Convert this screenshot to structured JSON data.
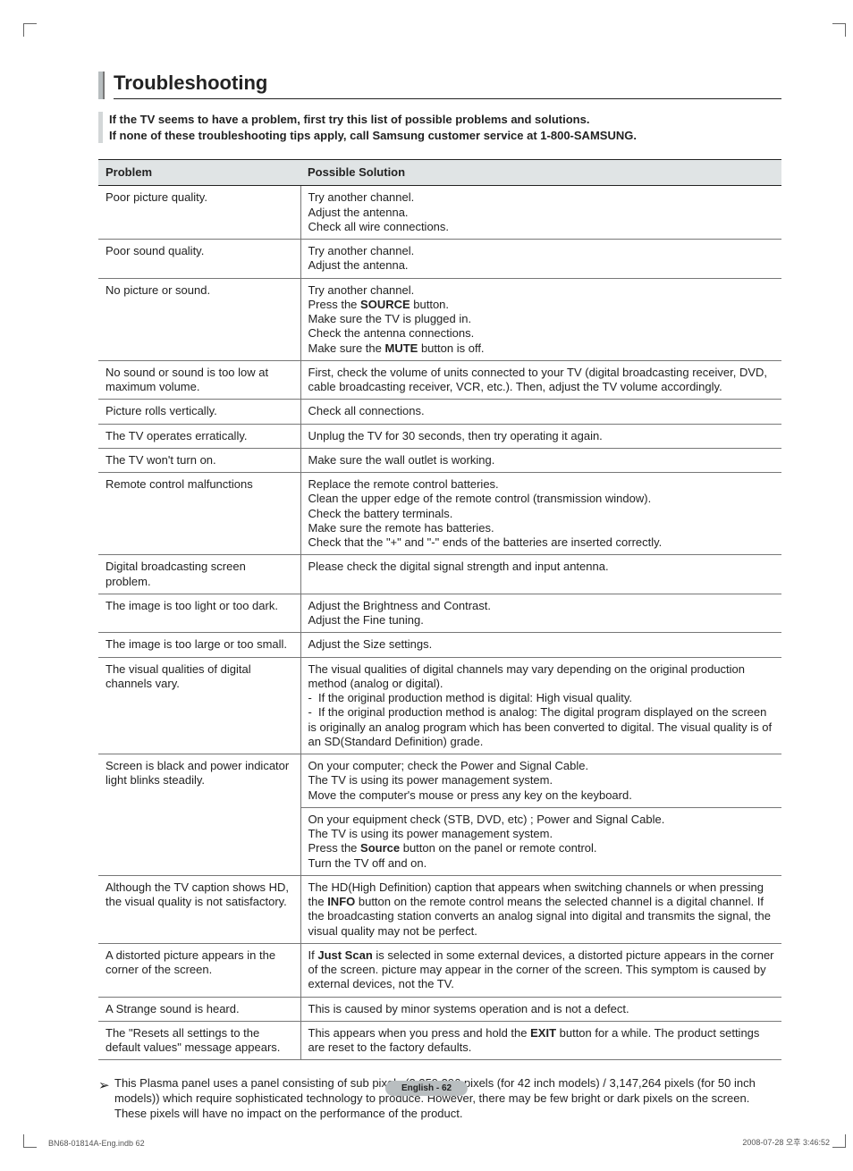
{
  "heading": "Troubleshooting",
  "intro": {
    "line1": "If the TV seems to have a problem, first try this list of possible problems and solutions.",
    "line2": "If none of these troubleshooting tips apply, call Samsung customer service at 1-800-SAMSUNG."
  },
  "table": {
    "columns": {
      "problem": "Problem",
      "solution": "Possible Solution"
    },
    "rows": [
      {
        "problem": "Poor picture quality.",
        "solution_html": "Try another channel.<br>Adjust the antenna.<br>Check all wire connections."
      },
      {
        "problem": "Poor sound quality.",
        "solution_html": "Try another channel.<br>Adjust the antenna."
      },
      {
        "problem": "No picture or sound.",
        "solution_html": "Try another channel.<br>Press the <span class=\"b\">SOURCE</span> button.<br>Make sure the TV is plugged in.<br>Check the antenna connections.<br>Make sure the <span class=\"b\">MUTE</span> button is off."
      },
      {
        "problem": "No sound or sound is too low at maximum volume.",
        "solution_html": "First, check the volume of units connected to your TV (digital broadcasting receiver, DVD, cable broadcasting receiver, VCR, etc.). Then, adjust the TV volume accordingly."
      },
      {
        "problem": "Picture rolls vertically.",
        "solution_html": "Check all connections."
      },
      {
        "problem": "The TV operates erratically.",
        "solution_html": "Unplug the TV for 30 seconds, then try operating it again."
      },
      {
        "problem": "The TV won't turn on.",
        "solution_html": "Make sure the wall outlet is working."
      },
      {
        "problem": "Remote control malfunctions",
        "solution_html": "Replace the remote control batteries.<br>Clean the upper edge of the remote control (transmission window).<br>Check the battery terminals.<br>Make sure the remote has batteries.<br>Check that the \"+\" and \"-\" ends of the batteries are inserted correctly."
      },
      {
        "problem": "Digital broadcasting screen problem.",
        "solution_html": "Please check the digital signal strength and input antenna."
      },
      {
        "problem": "The image is too light or too dark.",
        "solution_html": "Adjust the Brightness and Contrast.<br>Adjust the Fine tuning."
      },
      {
        "problem": "The image is too large or too small.",
        "solution_html": "Adjust the Size settings."
      },
      {
        "problem": "The visual qualities of digital channels vary.",
        "solution_html": "The visual qualities of digital channels may vary depending on the original production method (analog or digital).<br>- &nbsp;If the original production method is digital: High visual quality.<br>- &nbsp;If the original production method is analog: The digital program displayed on the screen is originally an analog program which has been converted to digital. The visual quality is of an SD(Standard Definition) grade."
      },
      {
        "problem": "Screen is black and power indicator<br>light blinks steadily.",
        "rowspan": 2,
        "solution_html": "On your computer; check the Power and Signal Cable.<br>The TV is using its power management system.<br>Move the computer's mouse or press any key on the keyboard."
      },
      {
        "problem": null,
        "solution_html": "On your equipment check (STB, DVD, etc) ; Power and Signal Cable.<br>The TV is using its power management system.<br>Press the <span class=\"b\">Source</span> button on the panel or remote control.<br>Turn the TV off and on."
      },
      {
        "problem": "Although the TV caption shows HD, the visual quality is not satisfactory.",
        "solution_html": "The HD(High Definition) caption that appears when switching channels or when pressing the <span class=\"b\">INFO</span> button on the remote control means the selected channel is a digital channel. If the broadcasting station converts an analog signal into digital and transmits the signal, the visual quality may not be perfect."
      },
      {
        "problem": "A distorted picture appears in the corner of the screen.",
        "solution_html": "If <span class=\"b\">Just Scan</span> is selected in some external devices, a distorted picture appears in the corner of the screen. picture may appear in the corner of the screen. This symptom is caused by external devices, not the TV."
      },
      {
        "problem": "A Strange sound is heard.",
        "solution_html": "This is caused by minor systems operation and is not a defect."
      },
      {
        "problem": "The \"Resets all settings to the default values\" message appears.",
        "solution_html": "This appears when you press and hold the <span class=\"b\">EXIT</span> button for a while. The product settings are reset to the factory defaults."
      }
    ]
  },
  "note": "This Plasma panel uses a panel consisting of sub pixels (2,359,296 pixels (for 42 inch models) / 3,147,264 pixels (for 50 inch models)) which require sophisticated technology to produce. However, there may be few bright or dark pixels on the screen. These pixels will have no impact on the performance of the product.",
  "page_label": "English - 62",
  "footer": {
    "left": "BN68-01814A-Eng.indb   62",
    "right": "2008-07-28   오후 3:46:52"
  },
  "colors": {
    "header_bg": "#e0e4e5",
    "bar_light": "#b7bdbf",
    "border_dark": "#222222",
    "border_mid": "#777777",
    "pill_bg": "#b9bec0"
  }
}
